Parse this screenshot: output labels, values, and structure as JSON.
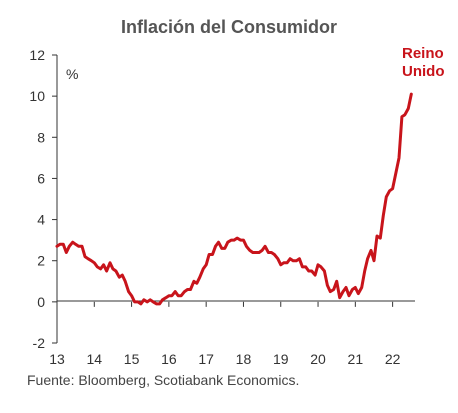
{
  "chart_data": {
    "type": "line",
    "title": "Inflación del Consumidor",
    "unit_label": "%",
    "xlabel": "",
    "ylabel": "",
    "ylim": [
      -2,
      12
    ],
    "yticks": [
      "-2",
      "0",
      "2",
      "4",
      "6",
      "8",
      "10",
      "12"
    ],
    "xlim": [
      13,
      22.6
    ],
    "xticks": [
      "13",
      "14",
      "15",
      "16",
      "17",
      "18",
      "19",
      "20",
      "21",
      "22"
    ],
    "grid": false,
    "series_label": [
      "Reino",
      "Unido"
    ],
    "series": [
      {
        "name": "Reino Unido",
        "color": "#c8141b",
        "points": [
          [
            13.0,
            2.7
          ],
          [
            13.08,
            2.8
          ],
          [
            13.17,
            2.8
          ],
          [
            13.25,
            2.4
          ],
          [
            13.33,
            2.7
          ],
          [
            13.42,
            2.9
          ],
          [
            13.5,
            2.8
          ],
          [
            13.58,
            2.7
          ],
          [
            13.67,
            2.7
          ],
          [
            13.75,
            2.2
          ],
          [
            13.83,
            2.1
          ],
          [
            13.92,
            2.0
          ],
          [
            14.0,
            1.9
          ],
          [
            14.08,
            1.7
          ],
          [
            14.17,
            1.6
          ],
          [
            14.25,
            1.8
          ],
          [
            14.33,
            1.5
          ],
          [
            14.42,
            1.9
          ],
          [
            14.5,
            1.6
          ],
          [
            14.58,
            1.5
          ],
          [
            14.67,
            1.2
          ],
          [
            14.75,
            1.3
          ],
          [
            14.83,
            1.0
          ],
          [
            14.92,
            0.5
          ],
          [
            15.0,
            0.3
          ],
          [
            15.08,
            0.0
          ],
          [
            15.17,
            0.0
          ],
          [
            15.25,
            -0.1
          ],
          [
            15.33,
            0.1
          ],
          [
            15.42,
            0.0
          ],
          [
            15.5,
            0.1
          ],
          [
            15.58,
            0.0
          ],
          [
            15.67,
            -0.1
          ],
          [
            15.75,
            -0.1
          ],
          [
            15.83,
            0.1
          ],
          [
            15.92,
            0.2
          ],
          [
            16.0,
            0.3
          ],
          [
            16.08,
            0.3
          ],
          [
            16.17,
            0.5
          ],
          [
            16.25,
            0.3
          ],
          [
            16.33,
            0.3
          ],
          [
            16.42,
            0.5
          ],
          [
            16.5,
            0.6
          ],
          [
            16.58,
            0.6
          ],
          [
            16.67,
            1.0
          ],
          [
            16.75,
            0.9
          ],
          [
            16.83,
            1.2
          ],
          [
            16.92,
            1.6
          ],
          [
            17.0,
            1.8
          ],
          [
            17.08,
            2.3
          ],
          [
            17.17,
            2.3
          ],
          [
            17.25,
            2.7
          ],
          [
            17.33,
            2.9
          ],
          [
            17.42,
            2.6
          ],
          [
            17.5,
            2.6
          ],
          [
            17.58,
            2.9
          ],
          [
            17.67,
            3.0
          ],
          [
            17.75,
            3.0
          ],
          [
            17.83,
            3.1
          ],
          [
            17.92,
            3.0
          ],
          [
            18.0,
            3.0
          ],
          [
            18.08,
            2.7
          ],
          [
            18.17,
            2.5
          ],
          [
            18.25,
            2.4
          ],
          [
            18.33,
            2.4
          ],
          [
            18.42,
            2.4
          ],
          [
            18.5,
            2.5
          ],
          [
            18.58,
            2.7
          ],
          [
            18.67,
            2.4
          ],
          [
            18.75,
            2.4
          ],
          [
            18.83,
            2.3
          ],
          [
            18.92,
            2.1
          ],
          [
            19.0,
            1.8
          ],
          [
            19.08,
            1.9
          ],
          [
            19.17,
            1.9
          ],
          [
            19.25,
            2.1
          ],
          [
            19.33,
            2.0
          ],
          [
            19.42,
            2.0
          ],
          [
            19.5,
            2.1
          ],
          [
            19.58,
            1.7
          ],
          [
            19.67,
            1.7
          ],
          [
            19.75,
            1.5
          ],
          [
            19.83,
            1.5
          ],
          [
            19.92,
            1.3
          ],
          [
            20.0,
            1.8
          ],
          [
            20.08,
            1.7
          ],
          [
            20.17,
            1.5
          ],
          [
            20.25,
            0.8
          ],
          [
            20.33,
            0.5
          ],
          [
            20.42,
            0.6
          ],
          [
            20.5,
            1.0
          ],
          [
            20.58,
            0.2
          ],
          [
            20.67,
            0.5
          ],
          [
            20.75,
            0.7
          ],
          [
            20.83,
            0.3
          ],
          [
            20.92,
            0.6
          ],
          [
            21.0,
            0.7
          ],
          [
            21.08,
            0.4
          ],
          [
            21.17,
            0.7
          ],
          [
            21.25,
            1.5
          ],
          [
            21.33,
            2.1
          ],
          [
            21.42,
            2.5
          ],
          [
            21.5,
            2.0
          ],
          [
            21.58,
            3.2
          ],
          [
            21.67,
            3.1
          ],
          [
            21.75,
            4.2
          ],
          [
            21.83,
            5.1
          ],
          [
            21.92,
            5.4
          ],
          [
            22.0,
            5.5
          ],
          [
            22.08,
            6.2
          ],
          [
            22.17,
            7.0
          ],
          [
            22.25,
            9.0
          ],
          [
            22.33,
            9.1
          ],
          [
            22.42,
            9.4
          ],
          [
            22.5,
            10.1
          ]
        ]
      }
    ]
  },
  "source_text": "Fuente:  Bloomberg, Scotiabank Economics."
}
